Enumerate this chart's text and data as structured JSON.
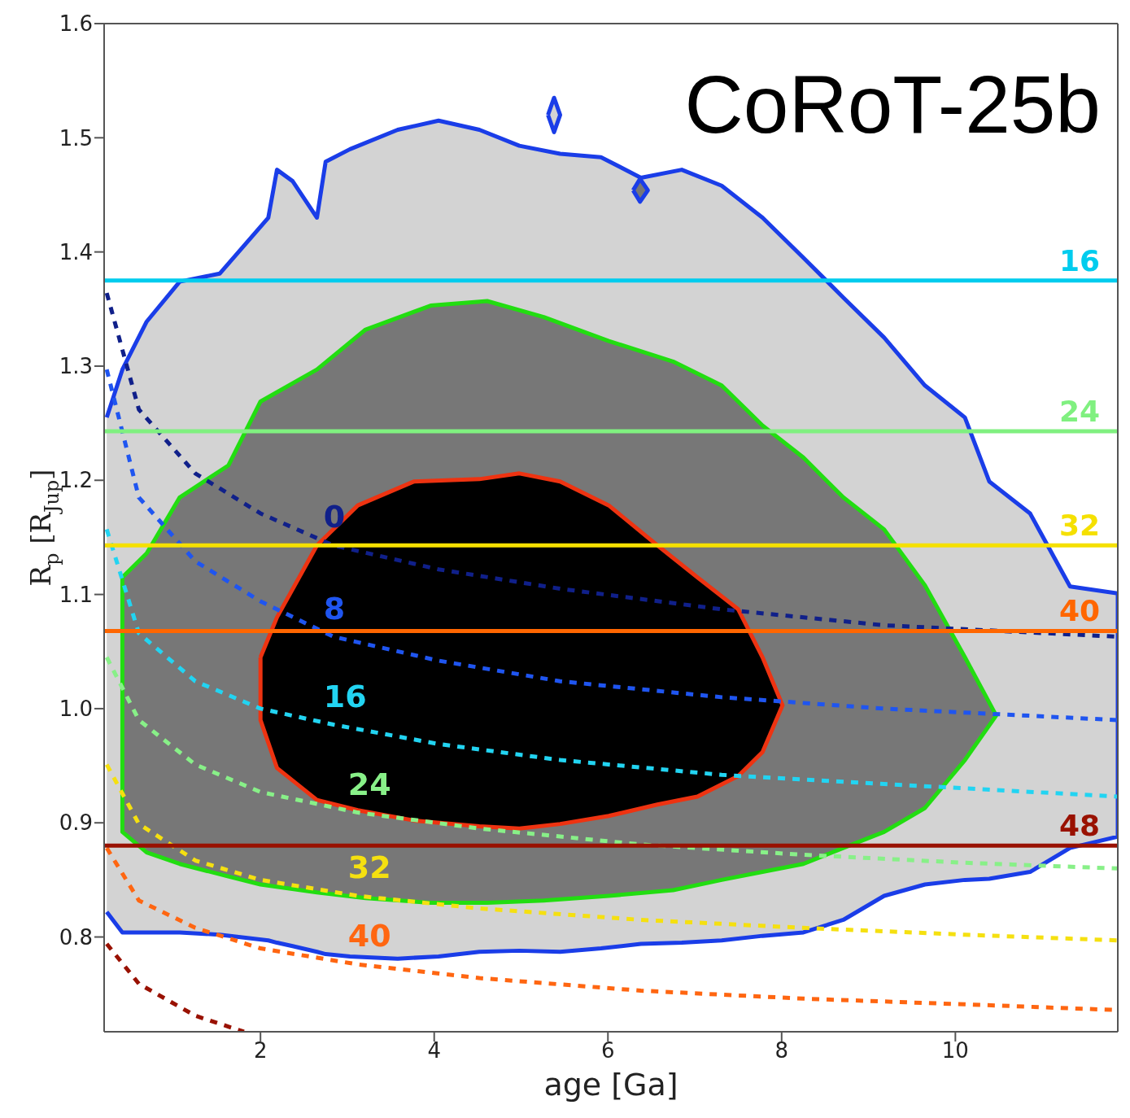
{
  "chart_data": {
    "type": "line",
    "title": "CoRoT-25b",
    "xlabel": "age [Ga]",
    "ylabel": "R$_{p}$ [R$_{Jup}$]",
    "xlim": [
      0.2,
      11.87
    ],
    "xticks": [
      2,
      4,
      6,
      8,
      10
    ],
    "ylim": [
      0.717,
      1.6
    ],
    "yticks": [
      0.8,
      0.9,
      {
        "value": 1,
        "label": "1.0"
      },
      1.1,
      1.2,
      1.3,
      1.4,
      1.5,
      1.6
    ],
    "grid": false,
    "legend": false,
    "line_style": "dashed",
    "marker": "none",
    "series": [
      {
        "type": "area",
        "line_style": "solid",
        "color": "#1a3de8",
        "x": [
          0.23,
          0.41,
          0.69,
          1.07,
          1.53,
          2.09,
          2.19,
          2.37,
          2.65,
          2.75,
          3.03,
          3.58,
          4.05,
          4.52,
          4.98,
          5.45,
          5.92,
          6.38,
          6.85,
          7.31,
          7.78,
          8.25,
          8.71,
          9.18,
          9.65,
          10.11,
          10.39,
          10.86,
          11.32,
          11.87,
          11.87,
          11.32,
          10.86,
          10.39,
          10.11,
          9.65,
          9.18,
          8.71,
          8.25,
          7.78,
          7.31,
          6.85,
          6.38,
          5.92,
          5.45,
          4.98,
          4.52,
          4.05,
          3.58,
          3.03,
          2.75,
          2.65,
          2.37,
          2.19,
          2.09,
          1.53,
          1.07,
          0.69,
          0.41,
          0.23
        ],
        "values": [
          0.822,
          0.804,
          0.804,
          0.804,
          0.802,
          0.797,
          0.795,
          0.792,
          0.787,
          0.785,
          0.783,
          0.781,
          0.783,
          0.787,
          0.788,
          0.787,
          0.79,
          0.794,
          0.795,
          0.797,
          0.801,
          0.804,
          0.815,
          0.836,
          0.846,
          0.85,
          0.851,
          0.857,
          0.878,
          0.888,
          1.101,
          1.107,
          1.171,
          1.199,
          1.255,
          1.283,
          1.325,
          1.36,
          1.395,
          1.43,
          1.458,
          1.472,
          1.465,
          1.483,
          1.486,
          1.493,
          1.507,
          1.515,
          1.507,
          1.49,
          1.479,
          1.43,
          1.462,
          1.472,
          1.43,
          1.381,
          1.374,
          1.339,
          1.297,
          1.255
        ]
      },
      {
        "type": "area",
        "line_style": "solid",
        "color": "#1a3de8",
        "x": [
          5.31,
          5.38,
          5.45,
          5.38,
          5.31
        ],
        "values": [
          1.52,
          1.535,
          1.52,
          1.505,
          1.52
        ]
      },
      {
        "type": "area",
        "line_style": "solid",
        "color": "#1a3de8",
        "x": [
          6.29,
          6.37,
          6.46,
          6.37,
          6.29
        ],
        "values": [
          1.454,
          1.464,
          1.454,
          1.444,
          1.454
        ]
      },
      {
        "type": "area",
        "line_style": "solid",
        "color": "#22dd11",
        "x": [
          0.41,
          0.69,
          1.07,
          1.63,
          2.0,
          2.65,
          3.21,
          3.96,
          4.61,
          5.26,
          6.01,
          6.75,
          7.31,
          7.78,
          8.25,
          8.71,
          9.18,
          9.65,
          10.11,
          10.47,
          10.11,
          9.65,
          9.18,
          8.71,
          8.25,
          7.78,
          7.31,
          6.75,
          6.01,
          5.26,
          4.61,
          3.96,
          3.21,
          2.65,
          2.0,
          1.63,
          1.07,
          0.69,
          0.41,
          0.41
        ],
        "values": [
          1.115,
          1.136,
          1.185,
          1.213,
          1.269,
          1.297,
          1.332,
          1.353,
          1.357,
          1.343,
          1.322,
          1.304,
          1.283,
          1.248,
          1.22,
          1.185,
          1.157,
          1.108,
          1.045,
          0.994,
          0.955,
          0.913,
          0.892,
          0.878,
          0.864,
          0.857,
          0.85,
          0.841,
          0.836,
          0.832,
          0.83,
          0.83,
          0.834,
          0.839,
          0.846,
          0.853,
          0.864,
          0.874,
          0.892,
          1.115
        ]
      },
      {
        "type": "area",
        "line_style": "solid",
        "color": "#ee3311",
        "x": [
          2.0,
          2.19,
          2.65,
          3.12,
          3.77,
          4.52,
          4.98,
          5.45,
          6.01,
          6.57,
          7.03,
          7.5,
          7.78,
          8.01,
          7.78,
          7.5,
          7.03,
          6.57,
          6.01,
          5.45,
          4.98,
          4.52,
          3.77,
          3.12,
          2.65,
          2.19,
          2.0,
          2.0
        ],
        "values": [
          1.045,
          1.08,
          1.143,
          1.178,
          1.199,
          1.201,
          1.206,
          1.199,
          1.178,
          1.143,
          1.115,
          1.087,
          1.045,
          1.003,
          0.962,
          0.941,
          0.923,
          0.916,
          0.906,
          0.899,
          0.895,
          0.897,
          0.902,
          0.911,
          0.92,
          0.948,
          0.99,
          1.045
        ]
      },
      {
        "name": "0",
        "color": "#10208a",
        "x": [
          0.23,
          0.6,
          1.25,
          2.0,
          2.84,
          4.05,
          5.45,
          7.31,
          9.18,
          11.87
        ],
        "values": [
          1.364,
          1.262,
          1.206,
          1.171,
          1.143,
          1.122,
          1.105,
          1.087,
          1.073,
          1.063
        ]
      },
      {
        "name": "8",
        "color": "#1f55f0",
        "x": [
          0.23,
          0.6,
          1.25,
          2.0,
          2.84,
          4.05,
          5.45,
          7.31,
          9.18,
          11.87
        ],
        "values": [
          1.297,
          1.185,
          1.129,
          1.094,
          1.063,
          1.042,
          1.024,
          1.01,
          1.0,
          0.99
        ]
      },
      {
        "name": "16",
        "color": "#22d4f2",
        "x": [
          0.23,
          0.6,
          1.25,
          2.0,
          2.84,
          4.05,
          5.45,
          7.31,
          9.18,
          11.87
        ],
        "values": [
          1.157,
          1.066,
          1.024,
          1.0,
          0.986,
          0.969,
          0.955,
          0.942,
          0.934,
          0.923
        ]
      },
      {
        "name": "24",
        "color": "#88f088",
        "x": [
          0.23,
          0.6,
          1.25,
          2.0,
          3.12,
          4.52,
          6.38,
          8.25,
          10.11,
          11.87
        ],
        "values": [
          1.045,
          0.99,
          0.951,
          0.927,
          0.909,
          0.895,
          0.881,
          0.872,
          0.865,
          0.86
        ]
      },
      {
        "name": "32",
        "color": "#f5e010",
        "x": [
          0.23,
          0.6,
          1.25,
          2.0,
          3.12,
          4.52,
          6.38,
          8.25,
          10.11,
          11.87
        ],
        "values": [
          0.951,
          0.899,
          0.867,
          0.85,
          0.836,
          0.825,
          0.815,
          0.808,
          0.802,
          0.797
        ]
      },
      {
        "name": "40",
        "color": "#ff6611",
        "x": [
          0.23,
          0.6,
          1.25,
          2.0,
          3.12,
          4.52,
          6.38,
          8.25,
          10.11,
          11.87
        ],
        "values": [
          0.878,
          0.832,
          0.808,
          0.79,
          0.776,
          0.764,
          0.753,
          0.746,
          0.741,
          0.736
        ]
      },
      {
        "color": "#991100",
        "x": [
          0.23,
          0.6,
          1.25,
          1.81
        ],
        "values": [
          0.794,
          0.759,
          0.731,
          0.717
        ]
      }
    ],
    "ref_lines": [
      {
        "axis": "y",
        "value": 1.375,
        "color": "#00ccee"
      },
      {
        "axis": "y",
        "value": 1.243,
        "color": "#80f080"
      },
      {
        "axis": "y",
        "value": 1.143,
        "color": "#f5e000"
      },
      {
        "axis": "y",
        "value": 1.068,
        "color": "#ff6600"
      },
      {
        "axis": "y",
        "value": 0.88,
        "color": "#991100"
      }
    ],
    "annotations": [
      "16",
      "24",
      "32",
      "40",
      "48"
    ]
  }
}
